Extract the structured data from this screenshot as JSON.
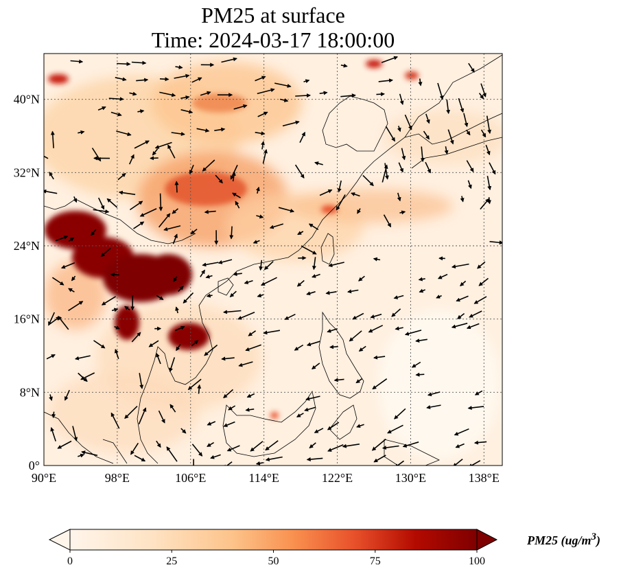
{
  "title": {
    "line1": "PM25 at surface",
    "line2": "Time: 2024-03-17 18:00:00"
  },
  "map": {
    "lon_range": [
      90,
      140
    ],
    "lat_range": [
      0,
      45
    ],
    "lon_ticks": [
      90,
      98,
      106,
      114,
      122,
      130,
      138
    ],
    "lat_ticks": [
      0,
      8,
      16,
      24,
      32,
      40
    ],
    "lon_tick_labels": [
      "90°E",
      "98°E",
      "106°E",
      "114°E",
      "122°E",
      "130°E",
      "138°E"
    ],
    "lat_tick_labels": [
      "0°",
      "8°N",
      "16°N",
      "24°N",
      "32°N",
      "40°N"
    ],
    "gridlines": true,
    "colors": {
      "low": "#fff5eb",
      "mid": "#fdae6b",
      "high": "#d94801",
      "max": "#7f0000"
    }
  },
  "colorbar": {
    "ticks": [
      0,
      25,
      50,
      75,
      100
    ],
    "tick_labels": [
      "0",
      "25",
      "50",
      "75",
      "100"
    ],
    "label": "PM25 (ug/m",
    "label_sup": "3",
    "label_end": ")",
    "range": [
      0,
      100
    ],
    "extend": "both"
  }
}
